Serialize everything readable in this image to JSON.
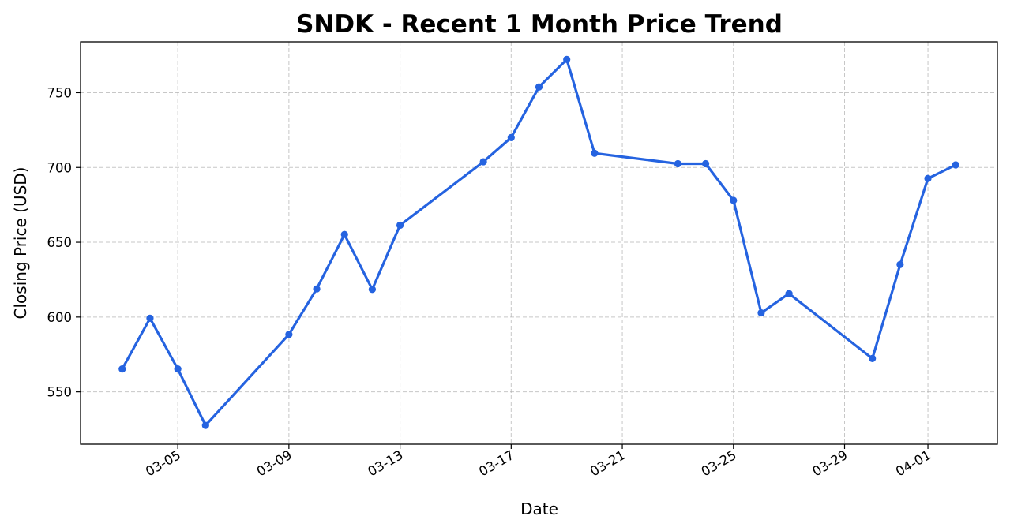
{
  "chart_data": {
    "type": "line",
    "title": "SNDK - Recent 1 Month Price Trend",
    "xlabel": "Date",
    "ylabel": "Closing Price (USD)",
    "x_tick_labels": [
      "03-05",
      "03-09",
      "03-13",
      "03-17",
      "03-21",
      "03-25",
      "03-29",
      "04-01"
    ],
    "y_ticks": [
      550,
      600,
      650,
      700,
      750
    ],
    "ylim": [
      515,
      784
    ],
    "grid": true,
    "series": [
      {
        "color": "#2563e0",
        "points": [
          {
            "x": "03-03",
            "y": 565.3
          },
          {
            "x": "03-04",
            "y": 599.2
          },
          {
            "x": "03-05",
            "y": 565.3
          },
          {
            "x": "03-06",
            "y": 527.6
          },
          {
            "x": "03-09",
            "y": 588.4
          },
          {
            "x": "03-10",
            "y": 618.8
          },
          {
            "x": "03-11",
            "y": 655.2
          },
          {
            "x": "03-12",
            "y": 618.5
          },
          {
            "x": "03-13",
            "y": 661.4
          },
          {
            "x": "03-16",
            "y": 703.8
          },
          {
            "x": "03-17",
            "y": 720.0
          },
          {
            "x": "03-18",
            "y": 753.8
          },
          {
            "x": "03-19",
            "y": 772.2
          },
          {
            "x": "03-20",
            "y": 709.5
          },
          {
            "x": "03-23",
            "y": 702.5
          },
          {
            "x": "03-24",
            "y": 702.5
          },
          {
            "x": "03-25",
            "y": 678.0
          },
          {
            "x": "03-26",
            "y": 602.8
          },
          {
            "x": "03-27",
            "y": 615.7
          },
          {
            "x": "03-30",
            "y": 572.3
          },
          {
            "x": "03-31",
            "y": 635.1
          },
          {
            "x": "04-01",
            "y": 692.6
          },
          {
            "x": "04-02",
            "y": 701.7
          }
        ]
      }
    ]
  }
}
